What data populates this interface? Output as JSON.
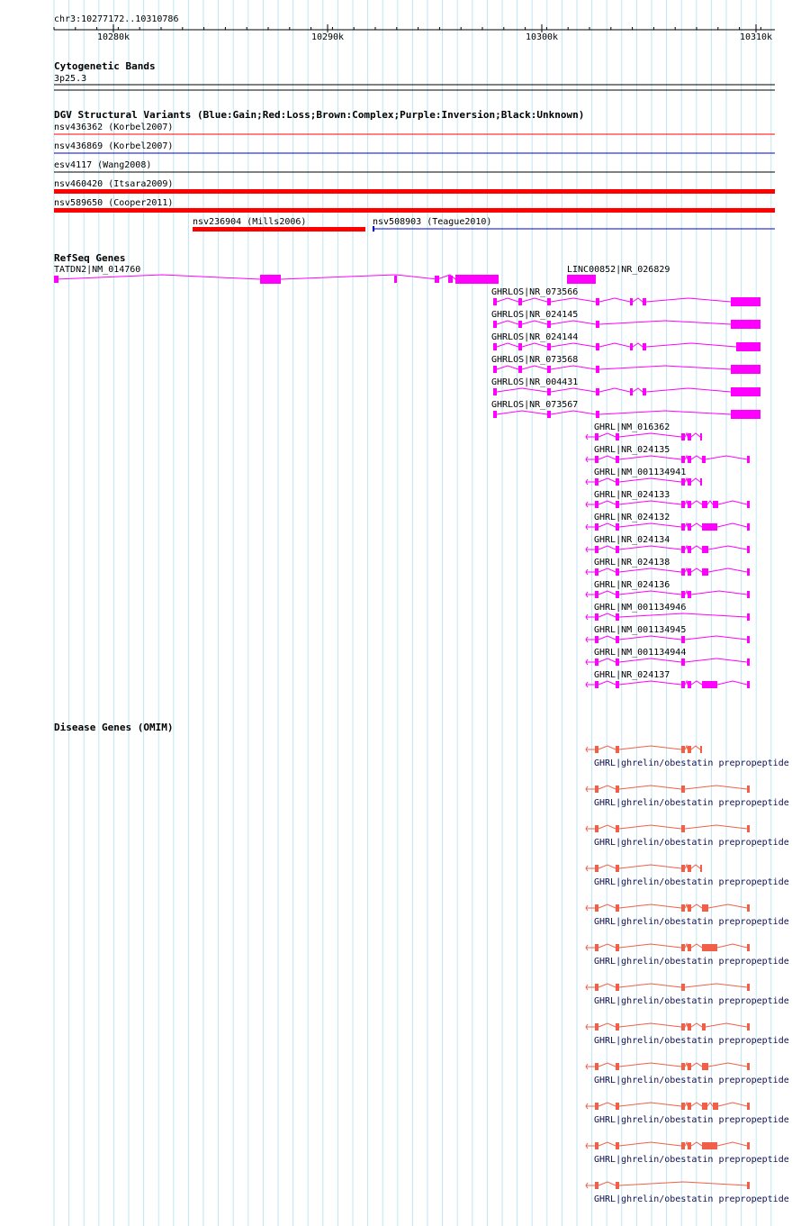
{
  "location": "chr3:10277172..10310786",
  "ruler": {
    "ticks": [
      "10280k",
      "10290k",
      "10300k",
      "10310k"
    ]
  },
  "tracks": {
    "cyto": {
      "title": "Cytogenetic Bands",
      "band": "3p25.3"
    },
    "dgv": {
      "title": "DGV Structural Variants (Blue:Gain;Red:Loss;Brown:Complex;Purple:Inversion;Black:Unknown)",
      "items": [
        {
          "label": "nsv436362 (Korbel2007)",
          "color": "#ff0000"
        },
        {
          "label": "nsv436869 (Korbel2007)",
          "color": "#0000cc"
        },
        {
          "label": "esv4117 (Wang2008)",
          "color": "#000000"
        },
        {
          "label": "nsv460420 (Itsara2009)",
          "color": "#ff0000"
        },
        {
          "label": "nsv589650 (Cooper2011)",
          "color": "#ff0000"
        },
        {
          "label": "nsv236904 (Mills2006)",
          "color": "#ff0000"
        },
        {
          "label": "nsv508903 (Teague2010)",
          "color": "#0000cc"
        }
      ]
    },
    "refseq": {
      "title": "RefSeq Genes",
      "color": "#ff00ff",
      "genes": [
        {
          "label": "TATDN2|NM_014760"
        },
        {
          "label": "LINC00852|NR_026829"
        },
        {
          "label": "GHRLOS|NR_073566"
        },
        {
          "label": "GHRLOS|NR_024145"
        },
        {
          "label": "GHRLOS|NR_024144"
        },
        {
          "label": "GHRLOS|NR_073568"
        },
        {
          "label": "GHRLOS|NR_004431"
        },
        {
          "label": "GHRLOS|NR_073567"
        },
        {
          "label": "GHRL|NM_016362"
        },
        {
          "label": "GHRL|NR_024135"
        },
        {
          "label": "GHRL|NM_001134941"
        },
        {
          "label": "GHRL|NR_024133"
        },
        {
          "label": "GHRL|NR_024132"
        },
        {
          "label": "GHRL|NR_024134"
        },
        {
          "label": "GHRL|NR_024138"
        },
        {
          "label": "GHRL|NR_024136"
        },
        {
          "label": "GHRL|NM_001134946"
        },
        {
          "label": "GHRL|NM_001134945"
        },
        {
          "label": "GHRL|NM_001134944"
        },
        {
          "label": "GHRL|NR_024137"
        }
      ]
    },
    "omim": {
      "title": "Disease Genes (OMIM)",
      "color": "#f06048",
      "items": [
        {
          "label": "GHRL|ghrelin/obestatin prepropeptide"
        },
        {
          "label": "GHRL|ghrelin/obestatin prepropeptide"
        },
        {
          "label": "GHRL|ghrelin/obestatin prepropeptide"
        },
        {
          "label": "GHRL|ghrelin/obestatin prepropeptide"
        },
        {
          "label": "GHRL|ghrelin/obestatin prepropeptide"
        },
        {
          "label": "GHRL|ghrelin/obestatin prepropeptide"
        },
        {
          "label": "GHRL|ghrelin/obestatin prepropeptide"
        },
        {
          "label": "GHRL|ghrelin/obestatin prepropeptide"
        },
        {
          "label": "GHRL|ghrelin/obestatin prepropeptide"
        },
        {
          "label": "GHRL|ghrelin/obestatin prepropeptide"
        },
        {
          "label": "GHRL|ghrelin/obestatin prepropeptide"
        },
        {
          "label": "GHRL|ghrelin/obestatin prepropeptide"
        }
      ]
    }
  }
}
